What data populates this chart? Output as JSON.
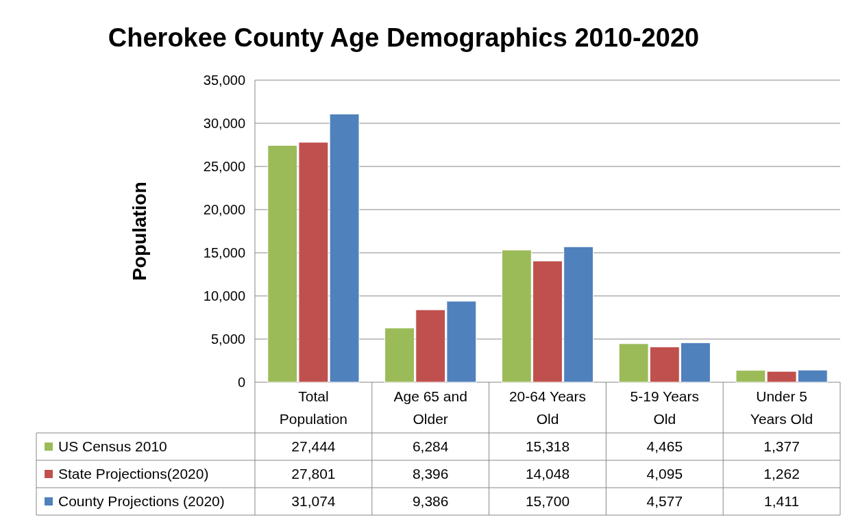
{
  "chart_data": {
    "type": "bar",
    "title": "Cherokee County Age Demographics 2010-2020",
    "ylabel": "Population",
    "categories": [
      "Total Population",
      "Age 65 and Older",
      "20-64 Years Old",
      "5-19 Years Old",
      "Under 5 Years Old"
    ],
    "series": [
      {
        "name": "US Census 2010",
        "color": "#9bbb59",
        "values": [
          27444,
          6284,
          15318,
          4465,
          1377
        ],
        "value_labels": [
          "27,444",
          "6,284",
          "15,318",
          "4,465",
          "1,377"
        ]
      },
      {
        "name": "State Projections(2020)",
        "color": "#c0504d",
        "values": [
          27801,
          8396,
          14048,
          4095,
          1262
        ],
        "value_labels": [
          "27,801",
          "8,396",
          "14,048",
          "4,095",
          "1,262"
        ]
      },
      {
        "name": "County Projections (2020)",
        "color": "#4f81bd",
        "values": [
          31074,
          9386,
          15700,
          4577,
          1411
        ],
        "value_labels": [
          "31,074",
          "9,386",
          "15,700",
          "4,577",
          "1,411"
        ]
      }
    ],
    "ylim": [
      0,
      35000
    ],
    "yticks": [
      {
        "value": 0,
        "label": "0"
      },
      {
        "value": 5000,
        "label": "5,000"
      },
      {
        "value": 10000,
        "label": "10,000"
      },
      {
        "value": 15000,
        "label": "15,000"
      },
      {
        "value": 20000,
        "label": "20,000"
      },
      {
        "value": 25000,
        "label": "25,000"
      },
      {
        "value": 30000,
        "label": "30,000"
      },
      {
        "value": 35000,
        "label": "35,000"
      }
    ],
    "grid": "y",
    "legend": "bottom"
  }
}
